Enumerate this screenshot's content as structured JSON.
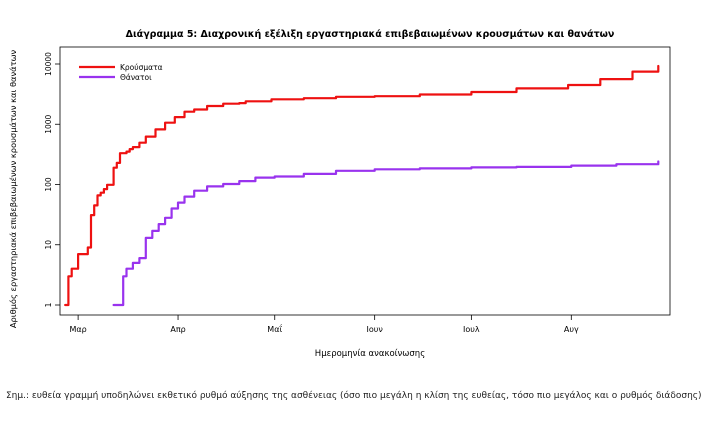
{
  "chart_data": {
    "type": "line",
    "title": "Διάγραμμα 5: Διαχρονική εξέλιξη εργαστηριακά επιβεβαιωμένων κρουσμάτων και θανάτων",
    "xlabel": "Ημερομηνία ανακοίνωσης",
    "ylabel": "Αριθμός εργαστηριακά επιβεβαιωμένων κρουσμάτων και θανάτων",
    "yscale": "log",
    "ylim": [
      1,
      10000
    ],
    "yticks": [
      1,
      10,
      100,
      1000,
      10000
    ],
    "ytick_labels": [
      "1",
      "10",
      "100",
      "1000",
      "10000"
    ],
    "xlim": [
      "2020-02-25",
      "2020-08-31"
    ],
    "xticks": [
      "2020-03-01",
      "2020-04-01",
      "2020-05-01",
      "2020-06-01",
      "2020-07-01",
      "2020-08-01"
    ],
    "xtick_labels": [
      "Μαρ",
      "Απρ",
      "Μαΐ",
      "Ιουν",
      "Ιουλ",
      "Αυγ"
    ],
    "legend_position": "top-left",
    "grid": false,
    "series": [
      {
        "name": "Κρούσματα",
        "color": "#ee1111",
        "points": [
          [
            "2020-02-26",
            1
          ],
          [
            "2020-02-27",
            3
          ],
          [
            "2020-02-28",
            4
          ],
          [
            "2020-02-29",
            4
          ],
          [
            "2020-03-01",
            7
          ],
          [
            "2020-03-03",
            7
          ],
          [
            "2020-03-04",
            9
          ],
          [
            "2020-03-05",
            31
          ],
          [
            "2020-03-06",
            45
          ],
          [
            "2020-03-07",
            66
          ],
          [
            "2020-03-08",
            73
          ],
          [
            "2020-03-09",
            84
          ],
          [
            "2020-03-10",
            99
          ],
          [
            "2020-03-11",
            99
          ],
          [
            "2020-03-12",
            190
          ],
          [
            "2020-03-13",
            228
          ],
          [
            "2020-03-14",
            331
          ],
          [
            "2020-03-16",
            352
          ],
          [
            "2020-03-17",
            387
          ],
          [
            "2020-03-18",
            418
          ],
          [
            "2020-03-20",
            495
          ],
          [
            "2020-03-22",
            624
          ],
          [
            "2020-03-25",
            821
          ],
          [
            "2020-03-28",
            1061
          ],
          [
            "2020-03-31",
            1314
          ],
          [
            "2020-04-03",
            1613
          ],
          [
            "2020-04-06",
            1755
          ],
          [
            "2020-04-10",
            2011
          ],
          [
            "2020-04-15",
            2192
          ],
          [
            "2020-04-20",
            2245
          ],
          [
            "2020-04-22",
            2401
          ],
          [
            "2020-04-30",
            2591
          ],
          [
            "2020-05-10",
            2710
          ],
          [
            "2020-05-20",
            2850
          ],
          [
            "2020-06-01",
            2918
          ],
          [
            "2020-06-15",
            3121
          ],
          [
            "2020-07-01",
            3432
          ],
          [
            "2020-07-15",
            3940
          ],
          [
            "2020-07-31",
            4477
          ],
          [
            "2020-08-10",
            5623
          ],
          [
            "2020-08-20",
            7472
          ],
          [
            "2020-08-28",
            9280
          ]
        ]
      },
      {
        "name": "Θάνατοι",
        "color": "#9933ee",
        "points": [
          [
            "2020-03-12",
            1
          ],
          [
            "2020-03-14",
            1
          ],
          [
            "2020-03-15",
            3
          ],
          [
            "2020-03-16",
            4
          ],
          [
            "2020-03-17",
            4
          ],
          [
            "2020-03-18",
            5
          ],
          [
            "2020-03-19",
            5
          ],
          [
            "2020-03-20",
            6
          ],
          [
            "2020-03-21",
            6
          ],
          [
            "2020-03-22",
            13
          ],
          [
            "2020-03-24",
            17
          ],
          [
            "2020-03-26",
            22
          ],
          [
            "2020-03-28",
            28
          ],
          [
            "2020-03-30",
            40
          ],
          [
            "2020-04-01",
            50
          ],
          [
            "2020-04-03",
            63
          ],
          [
            "2020-04-06",
            79
          ],
          [
            "2020-04-10",
            93
          ],
          [
            "2020-04-15",
            102
          ],
          [
            "2020-04-20",
            114
          ],
          [
            "2020-04-25",
            130
          ],
          [
            "2020-05-01",
            136
          ],
          [
            "2020-05-10",
            150
          ],
          [
            "2020-05-20",
            169
          ],
          [
            "2020-06-01",
            179
          ],
          [
            "2020-06-15",
            185
          ],
          [
            "2020-07-01",
            192
          ],
          [
            "2020-07-15",
            196
          ],
          [
            "2020-08-01",
            206
          ],
          [
            "2020-08-15",
            217
          ],
          [
            "2020-08-28",
            241
          ]
        ]
      }
    ]
  },
  "note": "Σημ.: ευθεία γραμμή υποδηλώνει εκθετικό ρυθμό αύξησης της ασθένειας (όσο πιο μεγάλη η κλίση της ευθείας, τόσο πιο μεγάλος και ο ρυθμός διάδοσης)"
}
